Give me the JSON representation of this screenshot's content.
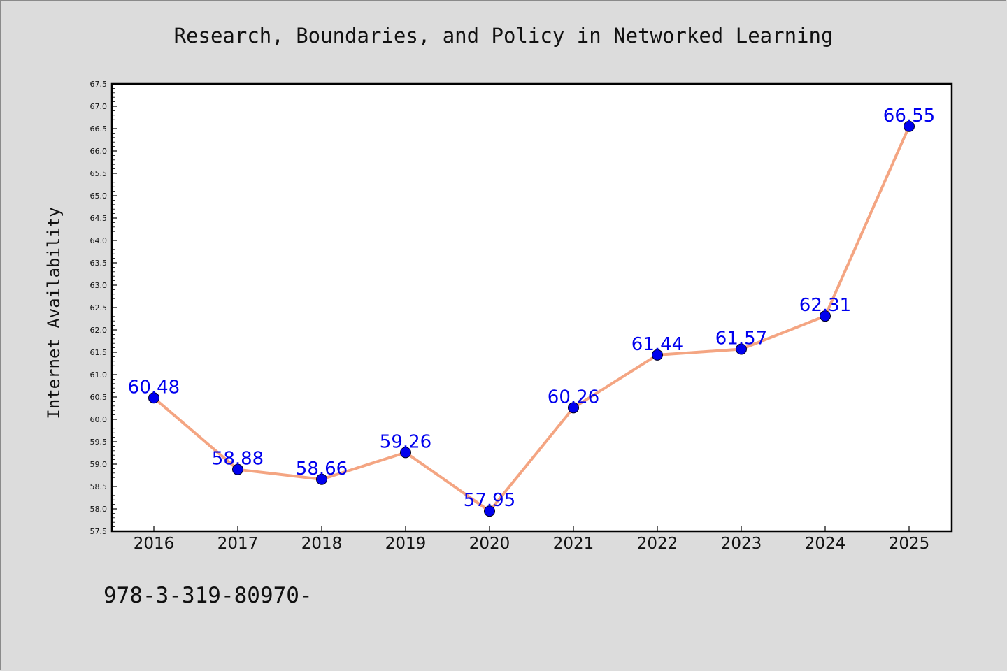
{
  "chart_data": {
    "type": "line",
    "title": "Research, Boundaries, and Policy in Networked Learning",
    "xlabel": "",
    "ylabel": "Internet Availability",
    "categories": [
      "2016",
      "2017",
      "2018",
      "2019",
      "2020",
      "2021",
      "2022",
      "2023",
      "2024",
      "2025"
    ],
    "series": [
      {
        "values": [
          60.48,
          58.88,
          58.66,
          59.26,
          57.95,
          60.26,
          61.44,
          61.57,
          62.31,
          66.55
        ],
        "data_labels": [
          "60.48",
          "58.88",
          "58.66",
          "59.26",
          "57.95",
          "60.26",
          "61.44",
          "61.57",
          "62.31",
          "66.55"
        ]
      }
    ],
    "ylim": [
      57.5,
      67.5
    ],
    "y_ticks": [
      "57.5",
      "58.0",
      "58.5",
      "59.0",
      "59.5",
      "60.0",
      "60.5",
      "61.0",
      "61.5",
      "62.0",
      "62.5",
      "63.0",
      "63.5",
      "64.0",
      "64.5",
      "65.0",
      "65.5",
      "66.0",
      "66.5",
      "67.0",
      "67.5"
    ],
    "grid": false,
    "legend": "none",
    "colors": {
      "line": "#f4a582",
      "marker": "#0000ee",
      "data_label": "#0000ee",
      "background": "#dcdcdc",
      "plot_background": "#ffffff"
    }
  },
  "footer": {
    "code": "978-3-319-80970-"
  }
}
